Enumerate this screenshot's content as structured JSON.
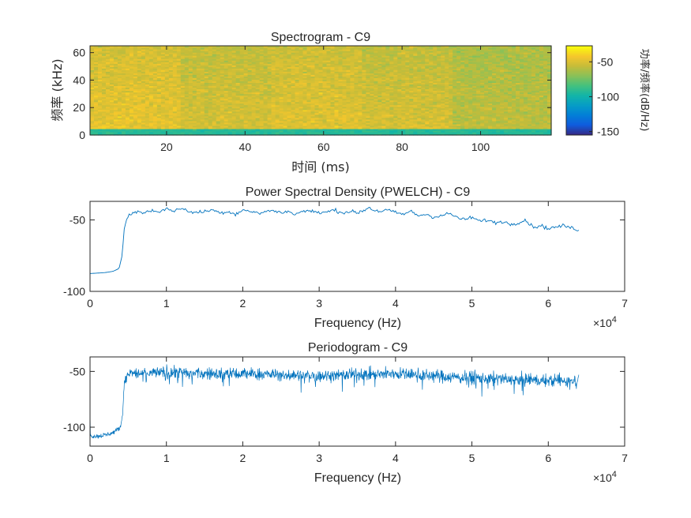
{
  "figure": {
    "background": "#ffffff",
    "axis_color": "#262626",
    "line_color": "#0072BD"
  },
  "chart_data": [
    {
      "type": "heatmap",
      "title": "Spectrogram - C9",
      "xlabel": "时间 (ms)",
      "ylabel": "频率 (kHz)",
      "xlim": [
        0.5,
        118
      ],
      "ylim": [
        0,
        65
      ],
      "xticks": [
        20,
        40,
        60,
        80,
        100
      ],
      "yticks": [
        0,
        20,
        40,
        60
      ],
      "colormap": "parula",
      "colorbar": {
        "label": "功率/频率(dB/Hz)",
        "clim": [
          -155,
          -27
        ],
        "ticks": [
          -50,
          -100,
          -150
        ]
      },
      "segments": [
        {
          "t_start": 0.5,
          "t_end": 24,
          "level_db": -45
        },
        {
          "t_start": 24,
          "t_end": 46.5,
          "level_db": -50
        },
        {
          "t_start": 46.5,
          "t_end": 70,
          "level_db": -47
        },
        {
          "t_start": 70,
          "t_end": 93,
          "level_db": -50
        },
        {
          "t_start": 93,
          "t_end": 118,
          "level_db": -56
        }
      ],
      "low_band": {
        "f_max_khz": 4,
        "level_db": -92
      }
    },
    {
      "type": "line",
      "title": "Power Spectral Density (PWELCH) - C9",
      "xlabel": "Frequency (Hz)",
      "x_exponent_label": "×10^4",
      "x_exponent": "4",
      "x_exponent_base": "×10",
      "xlim": [
        0,
        70000
      ],
      "ylim": [
        -100,
        -37
      ],
      "xticks": [
        0,
        1,
        2,
        3,
        4,
        5,
        6,
        7
      ],
      "yticks": [
        -50,
        -100
      ],
      "series": [
        {
          "x": [
            0,
            1000,
            2000,
            3000,
            3800,
            4200,
            4500,
            5000,
            6000,
            7000,
            8000,
            9000,
            10000,
            11000,
            12000,
            13000,
            14000,
            15000,
            16000,
            17000,
            18000,
            19000,
            20000,
            21000,
            22000,
            23000,
            24000,
            25000,
            26000,
            27000,
            28000,
            29000,
            30000,
            31000,
            32000,
            33000,
            34000,
            35000,
            36000,
            36500,
            37000,
            38000,
            39000,
            40000,
            41000,
            42000,
            43000,
            44000,
            45000,
            46000,
            47000,
            48000,
            49000,
            50000,
            51000,
            52000,
            53000,
            54000,
            55000,
            56000,
            57000,
            58000,
            59000,
            60000,
            61000,
            62000,
            63000,
            64000
          ],
          "y": [
            -87.5,
            -87.2,
            -86.8,
            -86,
            -84,
            -75,
            -55,
            -47,
            -44,
            -45,
            -43.5,
            -44,
            -42.5,
            -43.5,
            -42,
            -44,
            -45,
            -44,
            -43,
            -45,
            -44,
            -46,
            -43,
            -44,
            -45.5,
            -44,
            -43.5,
            -45,
            -44,
            -46,
            -43.5,
            -44,
            -45,
            -44.5,
            -43,
            -45,
            -44,
            -45,
            -43,
            -41,
            -43,
            -44,
            -43,
            -45,
            -46,
            -44,
            -47,
            -46,
            -48,
            -47,
            -45.5,
            -48,
            -50,
            -48,
            -51,
            -50,
            -52,
            -51,
            -53,
            -52,
            -50,
            -55,
            -54,
            -56,
            -55,
            -54,
            -55.5,
            -57
          ]
        }
      ]
    },
    {
      "type": "line",
      "title": "Periodogram - C9",
      "xlabel": "Frequency (Hz)",
      "x_exponent_label": "×10^4",
      "x_exponent": "4",
      "x_exponent_base": "×10",
      "xlim": [
        0,
        70000
      ],
      "ylim": [
        -117,
        -37
      ],
      "xticks": [
        0,
        1,
        2,
        3,
        4,
        5,
        6,
        7
      ],
      "yticks": [
        -50,
        -100
      ],
      "series": [
        {
          "note_level_envelope": "mean level (dB) per frequency; plotted with high-frequency fluctuation",
          "x": [
            0,
            1000,
            2000,
            3000,
            4000,
            4300,
            4500,
            5000,
            10000,
            15000,
            20000,
            25000,
            30000,
            35000,
            40000,
            45000,
            50000,
            55000,
            60000,
            64000
          ],
          "y": [
            -108,
            -108,
            -107,
            -105,
            -100,
            -85,
            -58,
            -52,
            -51,
            -52,
            -52,
            -53,
            -54,
            -53,
            -52,
            -54,
            -56,
            -57,
            -58,
            -58
          ]
        }
      ]
    }
  ]
}
